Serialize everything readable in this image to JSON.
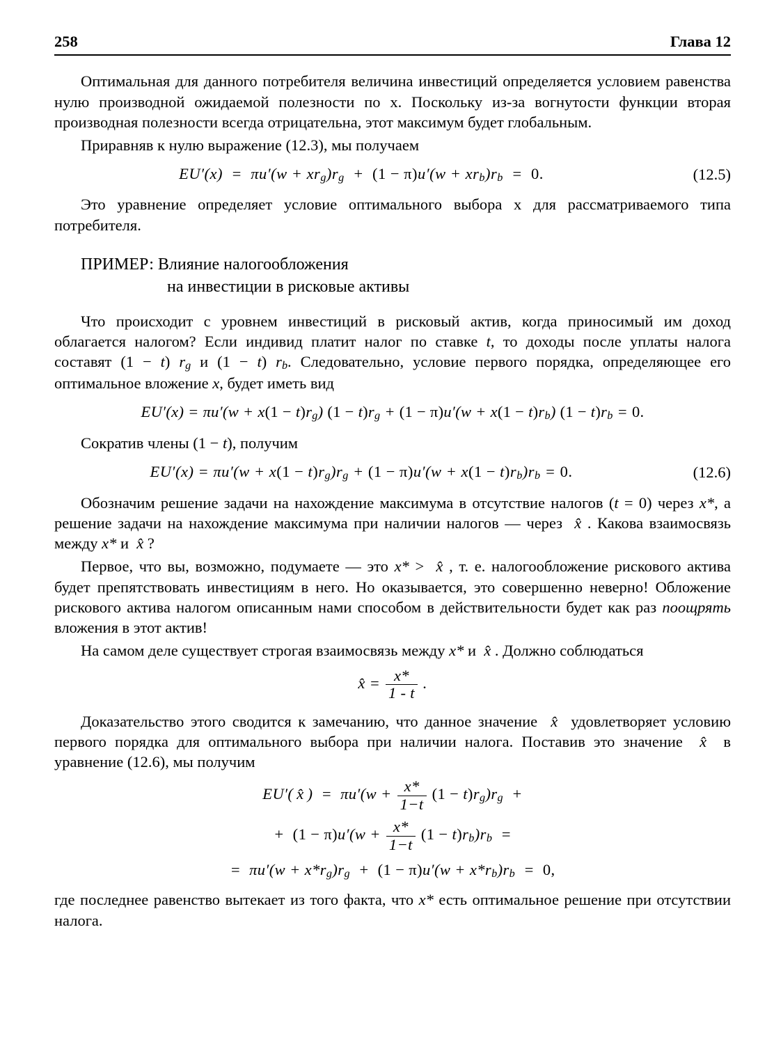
{
  "header": {
    "page_number": "258",
    "chapter": "Глава 12"
  },
  "paras": {
    "p1": "Оптимальная для данного потребителя величина инвестиций определяется усло­вием равенства нулю производной ожидаемой полезности по x. Поскольку из-за во­гнутости функции вторая производная полезности всегда отрицательна, этот макси­мум будет глобальным.",
    "p2": "Приравняв к нулю выражение (12.3), мы получаем",
    "p3": "Это уравнение определяет условие оптимального выбора x для рассматриваемого типа потребителя.",
    "p4_prefix": "Что происходит с уровнем инвестиций в рисковый актив, когда приносимый им доход облагается налогом? Если индивид платит налог по ставке ",
    "p4_var_t": "t",
    "p4_mid1": ", то доходы после уплаты налога составят (1 − ",
    "p4_mid2": " и (1 − ",
    "p4_mid3": ". Следовательно, условие первого порядка, определяющее его оптимальное вложение ",
    "p4_var_x": "x",
    "p4_suffix": ", будет иметь вид",
    "p5_prefix": "Сократив члены (1 − ",
    "p5_suffix": "), получим",
    "p6_prefix": "Обозначим решение задачи на нахождение максимума в отсутствие налогов (",
    "p6_mid1": " = 0) через ",
    "p6_mid2": ", а решение задачи на нахождение максимума при наличии налогов — через ",
    "p6_mid3": ". Какова взаимосвязь между ",
    "p6_mid4": " и ",
    "p6_suffix": " ?",
    "p7_prefix": "Первое, что вы, возможно, подумаете — это ",
    "p7_mid1": " > ",
    "p7_mid2": ", т. е. налогообложение риско­вого актива будет препятствовать инвестициям в него. Но оказывается, это совершен­но неверно! Обложение рискового актива налогом описанным нами способом в дей­ствительности будет как раз ",
    "p7_em": "поощрять",
    "p7_suffix": " вложения в этот актив!",
    "p8_prefix": "На самом деле существует строгая взаимосвязь между ",
    "p8_mid1": " и ",
    "p8_suffix": ". Должно соблюдаться",
    "p9_prefix": "Доказательство этого сводится к замечанию, что данное значение ",
    "p9_mid": " удовлетворяет условию первого порядка для оптимального выбора при наличии налога. Поставив это значение ",
    "p9_suffix": " в уравнение (12.6), мы получим",
    "p10_prefix": "где последнее равенство вытекает из того факта, что ",
    "p10_suffix": " есть оптимальное решение при отсутствии налога."
  },
  "section": {
    "prefix": "ПРИМЕР:",
    "l1_rest": "  Влияние налогообложения",
    "l2": "на инвестиции в рисковые активы"
  },
  "symbols": {
    "xstar": "x*",
    "xhat": "x̂",
    "tvar": "t",
    "rg": "r",
    "rg_sub": "g",
    "rb": "r",
    "rb_sub": "b"
  },
  "equations": {
    "eq125": "EU′(x)  =  πu′(w + xr_g)r_g  +  (1 − π)u′(w + xr_b)r_b  =  0.",
    "eq125_label": "(12.5)",
    "eq_long": "EU′(x) = πu′(w + x(1 − t)r_g) (1 − t)r_g + (1 − π)u′(w + x(1 − t)r_b) (1 − t)r_b = 0.",
    "eq126": "EU′(x) = πu′(w + x(1 − t)r_g)r_g + (1 − π)u′(w + x(1 − t)r_b)r_b = 0.",
    "eq126_label": "(12.6)",
    "frac_num": "x*",
    "frac_den": "1 - t",
    "multi_l2": "+  (1 − π)u′(w + ",
    "multi_l2_tail": " (1 − t)r_b)r_b  =",
    "multi_l3": "=  πu′(w + x*r_g)r_g  +  (1 − π)u′(w + x*r_b)r_b  =  0,"
  }
}
